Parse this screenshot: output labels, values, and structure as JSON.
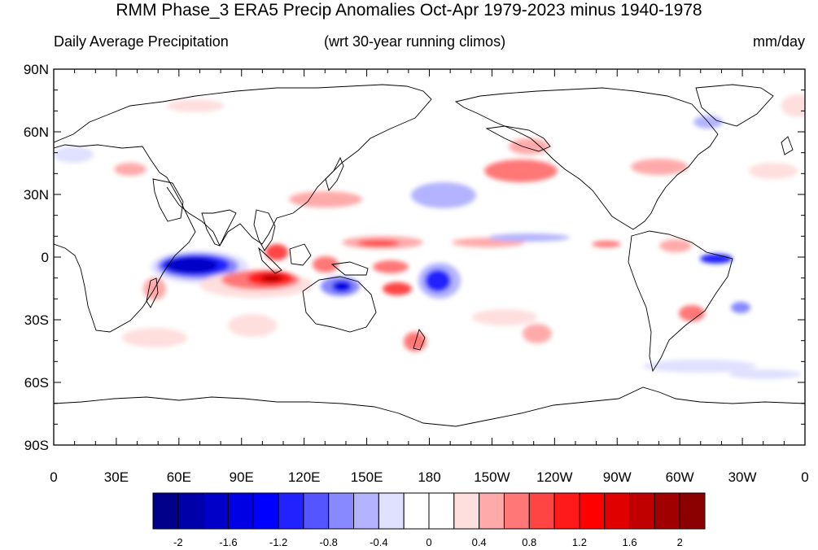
{
  "title": "RMM Phase_3 ERA5 Precip Anomalies Oct-Apr 1979-2023 minus 1940-1978",
  "subtitle_left": "Daily Average Precipitation",
  "subtitle_center": "(wrt 30-year running climos)",
  "subtitle_right": "mm/day",
  "lat_labels": [
    "90N",
    "60N",
    "30N",
    "0",
    "30S",
    "60S",
    "90S"
  ],
  "lon_labels": [
    "0",
    "30E",
    "60E",
    "90E",
    "120E",
    "150E",
    "180",
    "150W",
    "120W",
    "90W",
    "60W",
    "30W",
    "0"
  ],
  "colorbar": {
    "colors": [
      "#00008b",
      "#0000a8",
      "#0000c8",
      "#0000e4",
      "#0000ff",
      "#2222ff",
      "#5555ff",
      "#8888ff",
      "#b3b3ff",
      "#e0e0ff",
      "#ffffff",
      "#ffffff",
      "#ffdede",
      "#ffaaaa",
      "#ff7777",
      "#ff4444",
      "#ff1a1a",
      "#ff0000",
      "#e00000",
      "#c00000",
      "#a00000",
      "#8b0000"
    ],
    "labels": [
      "-2",
      "-1.6",
      "-1.2",
      "-0.8",
      "-0.4",
      "0",
      "0.4",
      "0.8",
      "1.2",
      "1.6",
      "2"
    ]
  }
}
